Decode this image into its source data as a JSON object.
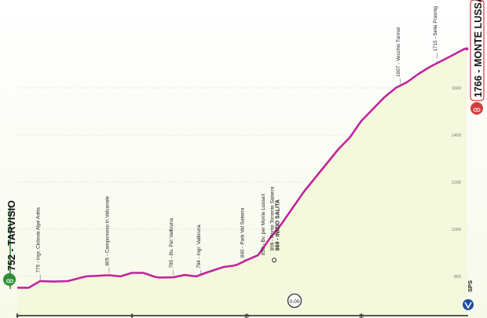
{
  "chart_data": {
    "type": "area",
    "start": {
      "elevation": "752",
      "name": "TARVISIO"
    },
    "finish": {
      "elevation": "1766",
      "name": "MONTE LUSSARI"
    },
    "profile": {
      "x_km": [
        0,
        0.5,
        1,
        1.6,
        2.2,
        3,
        4,
        4.5,
        5,
        5.5,
        6,
        6.2,
        6.8,
        7.3,
        7.8,
        8.3,
        9,
        9.4,
        9.6,
        10,
        10.5,
        11,
        11.5,
        12,
        12.5,
        13,
        13.5,
        14,
        14.5,
        15,
        15.5,
        16,
        16.5,
        17,
        17.5,
        18,
        18.5,
        19,
        19.5,
        19.6
      ],
      "elevation_m": [
        752,
        752,
        780,
        778,
        780,
        800,
        805,
        800,
        815,
        815,
        798,
        795,
        796,
        806,
        800,
        818,
        840,
        845,
        850,
        869,
        890,
        960,
        1020,
        1090,
        1160,
        1220,
        1280,
        1340,
        1390,
        1460,
        1510,
        1560,
        1600,
        1625,
        1660,
        1690,
        1715,
        1740,
        1766,
        1766
      ]
    },
    "checkpoints": [
      {
        "km": 1.0,
        "elev": 775,
        "label": "775 - Ingr. Ciclovia Alpe Adria"
      },
      {
        "km": 4.0,
        "elev": 805,
        "label": "805 - Camporosso in Valcanale"
      },
      {
        "km": 6.8,
        "elev": 795,
        "label": "795 - Bv. Per Valbruna"
      },
      {
        "km": 8.0,
        "elev": 794,
        "label": "794 - Ingr. Valbruna"
      },
      {
        "km": 9.9,
        "elev": 840,
        "label": "840 - Park Val Saisera"
      },
      {
        "km": 10.8,
        "elev": 850,
        "label": "850 - Bv. per Monte Lussari"
      },
      {
        "km": 11.2,
        "elev": 869,
        "label": "869 - Ponte Torrente Saisera"
      },
      {
        "km": 11.2,
        "elev": 869,
        "label": "869 - INIZIO SALITA",
        "strong": true
      },
      {
        "km": 16.7,
        "elev": 1607,
        "label": "1607 - Vecchio Tunnel"
      },
      {
        "km": 18.3,
        "elev": 1715,
        "label": "1715 - Sella Prasnig"
      }
    ],
    "x_ticks": [
      "0",
      "5",
      "10",
      "15"
    ],
    "y_ticks": [
      "800",
      "1000",
      "1200",
      "1400",
      "1600"
    ],
    "markers": {
      "timer": "0.00",
      "finish_brand": "SPS"
    },
    "colors": {
      "line": "#c2259c",
      "fill": "#f4f8dc",
      "start_accent": "#2f8f3a",
      "finish_accent": "#d63b3b"
    }
  }
}
